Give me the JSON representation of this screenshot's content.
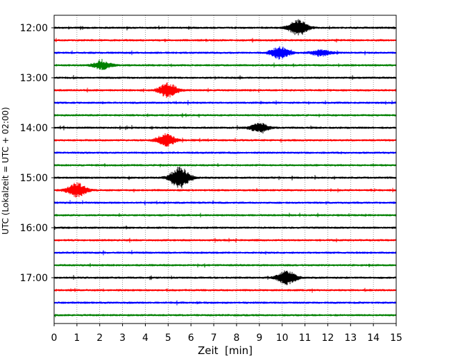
{
  "chart_data": {
    "type": "line",
    "title": "",
    "xlabel": "Zeit  [min]",
    "ylabel": "UTC (Lokalzeit = UTC + 02:00)",
    "xlim": [
      0,
      15
    ],
    "x_ticks": [
      0,
      1,
      2,
      3,
      4,
      5,
      6,
      7,
      8,
      9,
      10,
      11,
      12,
      13,
      14,
      15
    ],
    "y_ticks": [
      "12:00",
      "13:00",
      "14:00",
      "15:00",
      "16:00",
      "17:00"
    ],
    "grid": "vertical dotted lines at each minute",
    "trace_interval_min": 15,
    "color_cycle": [
      "#000000",
      "#ff0000",
      "#0000ff",
      "#008000"
    ],
    "traces": [
      {
        "start": "12:00",
        "color": "#000000",
        "events": [
          {
            "t": 10.7,
            "amp": 1.0
          }
        ]
      },
      {
        "start": "12:15",
        "color": "#ff0000",
        "events": []
      },
      {
        "start": "12:30",
        "color": "#0000ff",
        "events": [
          {
            "t": 9.9,
            "amp": 0.75
          },
          {
            "t": 11.7,
            "amp": 0.4
          }
        ]
      },
      {
        "start": "12:45",
        "color": "#008000",
        "events": [
          {
            "t": 2.1,
            "amp": 0.5
          }
        ]
      },
      {
        "start": "13:00",
        "color": "#000000",
        "events": []
      },
      {
        "start": "13:15",
        "color": "#ff0000",
        "events": [
          {
            "t": 5.0,
            "amp": 0.9
          }
        ]
      },
      {
        "start": "13:30",
        "color": "#0000ff",
        "events": []
      },
      {
        "start": "13:45",
        "color": "#008000",
        "events": []
      },
      {
        "start": "14:00",
        "color": "#000000",
        "events": [
          {
            "t": 9.0,
            "amp": 0.55
          }
        ]
      },
      {
        "start": "14:15",
        "color": "#ff0000",
        "events": [
          {
            "t": 4.9,
            "amp": 0.8
          }
        ]
      },
      {
        "start": "14:30",
        "color": "#0000ff",
        "events": []
      },
      {
        "start": "14:45",
        "color": "#008000",
        "events": []
      },
      {
        "start": "15:00",
        "color": "#000000",
        "events": [
          {
            "t": 5.5,
            "amp": 1.4
          }
        ]
      },
      {
        "start": "15:15",
        "color": "#ff0000",
        "events": [
          {
            "t": 1.0,
            "amp": 0.9
          }
        ]
      },
      {
        "start": "15:30",
        "color": "#0000ff",
        "events": []
      },
      {
        "start": "15:45",
        "color": "#008000",
        "events": []
      },
      {
        "start": "16:00",
        "color": "#000000",
        "events": []
      },
      {
        "start": "16:15",
        "color": "#ff0000",
        "events": []
      },
      {
        "start": "16:30",
        "color": "#0000ff",
        "events": []
      },
      {
        "start": "16:45",
        "color": "#008000",
        "events": []
      },
      {
        "start": "17:00",
        "color": "#000000",
        "events": [
          {
            "t": 10.2,
            "amp": 0.9
          }
        ]
      },
      {
        "start": "17:15",
        "color": "#ff0000",
        "events": []
      },
      {
        "start": "17:30",
        "color": "#0000ff",
        "events": []
      },
      {
        "start": "17:45",
        "color": "#008000",
        "events": []
      }
    ]
  }
}
